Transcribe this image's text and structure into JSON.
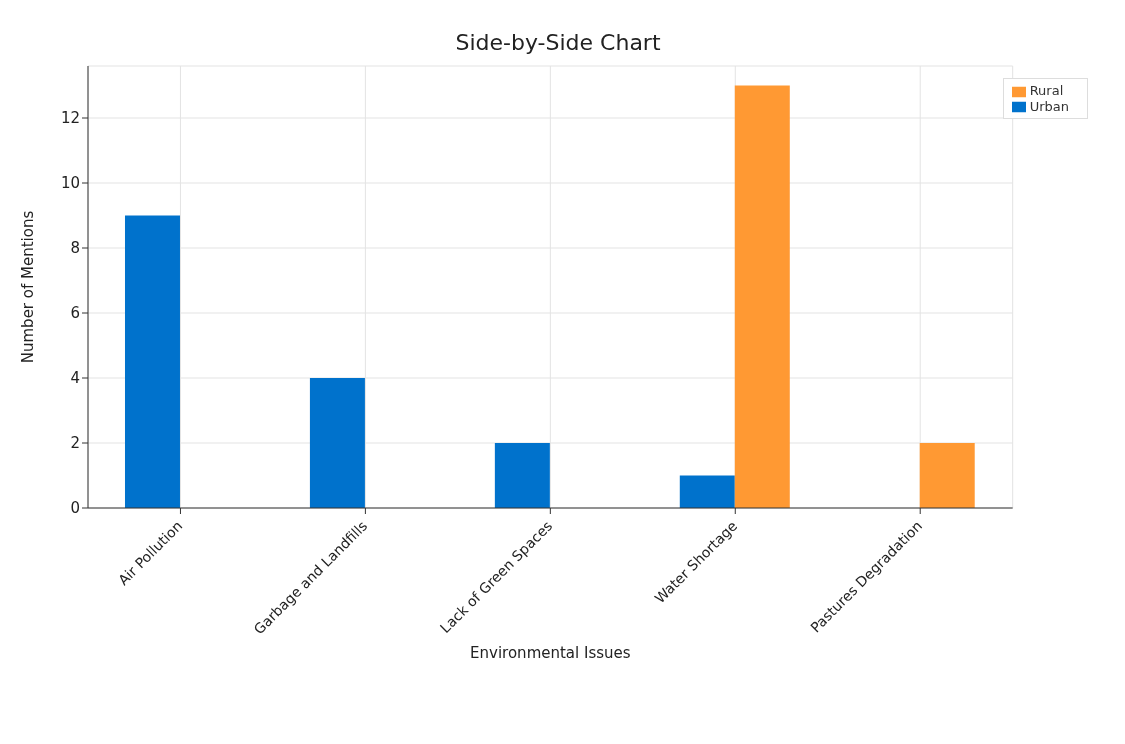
{
  "chart_data": {
    "type": "bar",
    "title": "Side-by-Side Chart",
    "xlabel": "Environmental Issues",
    "ylabel": "Number of Mentions",
    "categories": [
      "Air Pollution",
      "Garbage and Landfills",
      "Lack of Green Spaces",
      "Water Shortage",
      "Pastures Degradation"
    ],
    "series": [
      {
        "name": "Urban",
        "color": "#0072cc",
        "values": [
          9,
          4,
          2,
          1,
          0
        ]
      },
      {
        "name": "Rural",
        "color": "#ff9933",
        "values": [
          0,
          0,
          0,
          13,
          2
        ]
      }
    ],
    "ylim": [
      0,
      13.6
    ],
    "yticks": [
      0,
      2,
      4,
      6,
      8,
      10,
      12
    ],
    "grid": true,
    "legend": "top right"
  }
}
